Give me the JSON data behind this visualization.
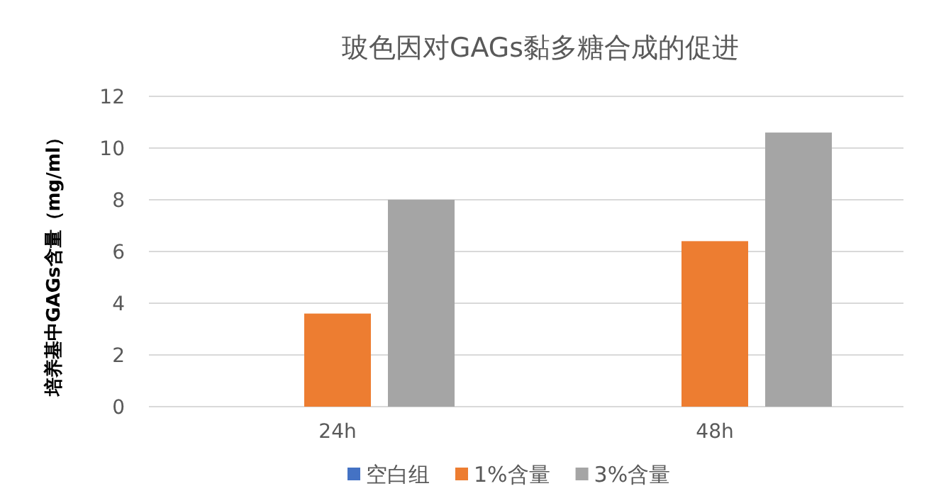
{
  "chart_data": {
    "type": "bar",
    "title": "玻色因对GAGs黏多糖合成的促进",
    "ylabel": "培养基中GAGs含量（mg/ml）",
    "categories": [
      "24h",
      "48h"
    ],
    "series": [
      {
        "name": "空白组",
        "color": "#4472c4",
        "values": [
          0,
          0
        ]
      },
      {
        "name": "1%含量",
        "color": "#ed7d31",
        "values": [
          3.6,
          6.4
        ]
      },
      {
        "name": "3%含量",
        "color": "#a5a5a5",
        "values": [
          8.0,
          10.6
        ]
      }
    ],
    "ylim": [
      0,
      12
    ],
    "yticks": [
      0,
      2,
      4,
      6,
      8,
      10,
      12
    ],
    "grid": "y",
    "legend": "bottom"
  }
}
